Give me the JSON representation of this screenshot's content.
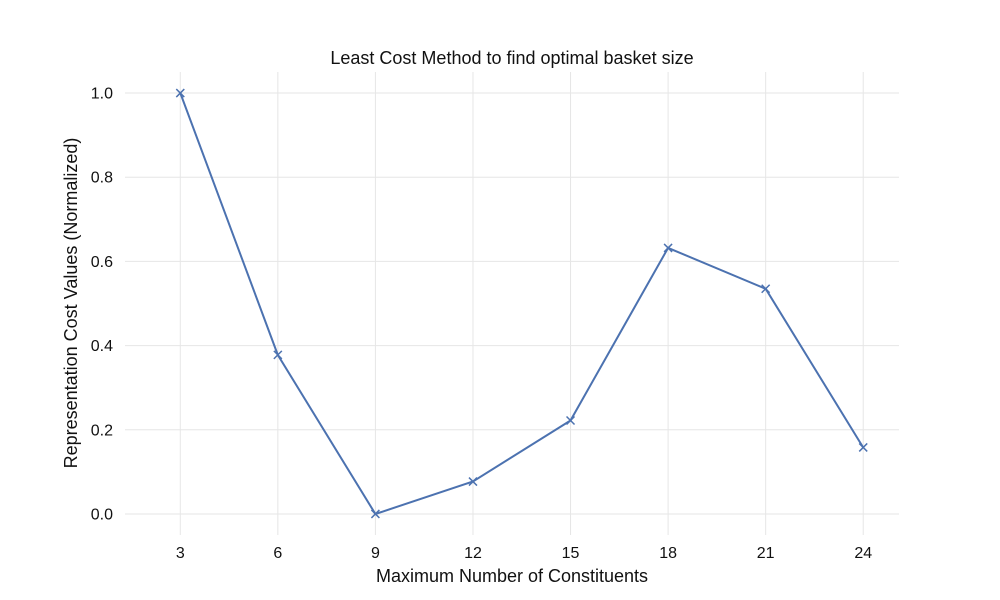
{
  "chart_data": {
    "type": "line",
    "title": "Least Cost Method to find optimal basket size",
    "xlabel": "Maximum Number of Constituents",
    "ylabel": "Representation Cost Values (Normalized)",
    "x": [
      3,
      6,
      9,
      12,
      15,
      18,
      21,
      24
    ],
    "x_ticks": [
      "3",
      "6",
      "9",
      "12",
      "15",
      "18",
      "21",
      "24"
    ],
    "y_ticks": [
      "0.0",
      "0.2",
      "0.4",
      "0.6",
      "0.8",
      "1.0"
    ],
    "xlim": [
      1.3,
      25.1
    ],
    "ylim": [
      -0.05,
      1.05
    ],
    "grid": true,
    "marker": "x",
    "series": [
      {
        "values": [
          1.0,
          0.378,
          0.0,
          0.077,
          0.222,
          0.632,
          0.535,
          0.158
        ],
        "color": "#4c72b0"
      }
    ]
  }
}
